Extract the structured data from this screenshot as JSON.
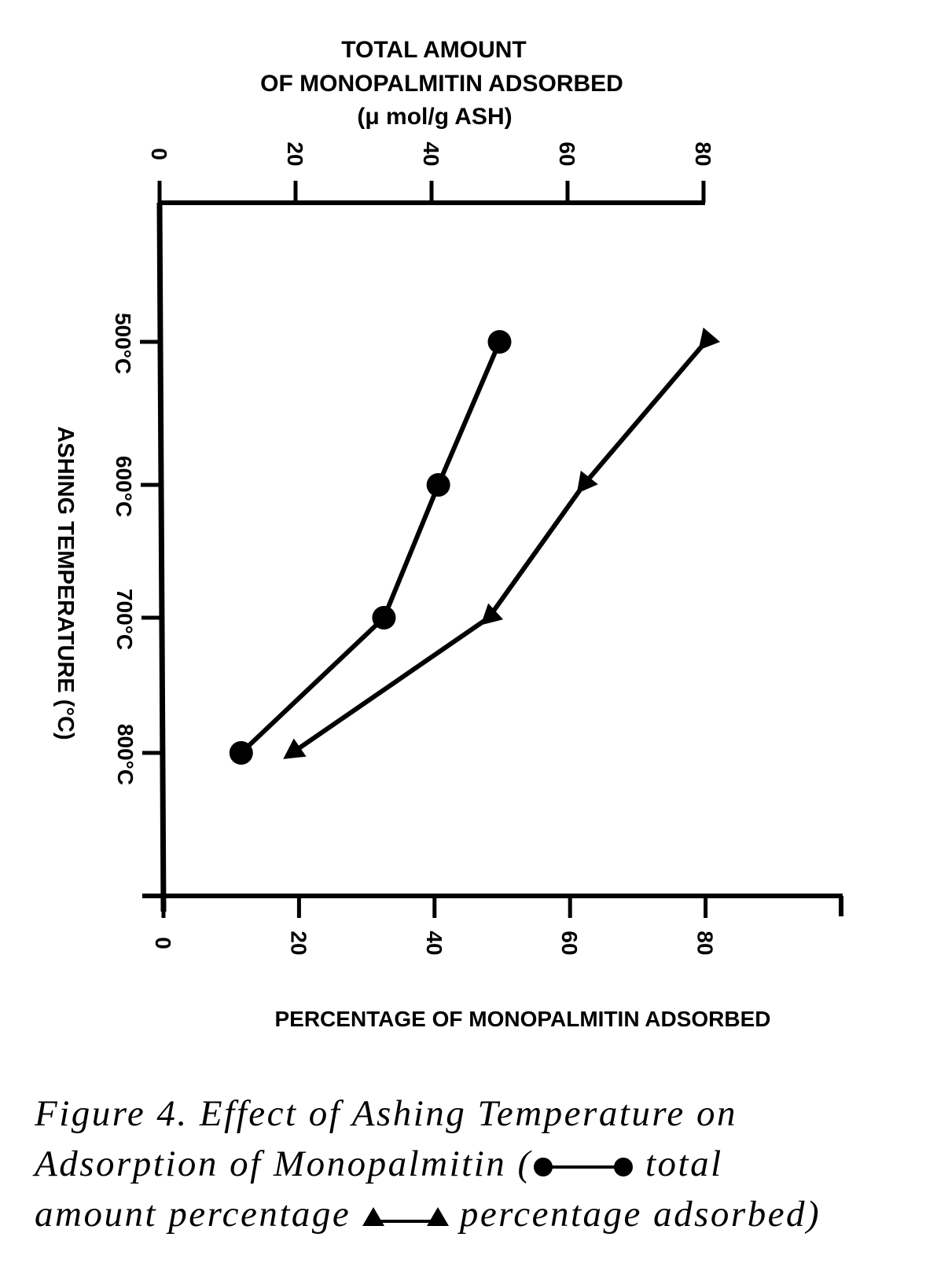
{
  "chart_data": {
    "type": "line",
    "title": "",
    "top_axis": {
      "label_lines": [
        "TOTAL AMOUNT",
        "OF MONOPALMITIN ADSORBED",
        "(μ mol/g ASH)"
      ],
      "ticks": [
        0,
        20,
        40,
        60,
        80
      ],
      "range": [
        0,
        80
      ]
    },
    "bottom_axis": {
      "label": "PERCENTAGE OF MONOPALMITIN ADSORBED",
      "ticks": [
        0,
        20,
        40,
        60,
        80
      ],
      "range": [
        0,
        100
      ]
    },
    "temperature_axis": {
      "label": "ASHING TEMPERATURE (°C)",
      "categories": [
        "500°C",
        "600°C",
        "700°C",
        "800°C"
      ],
      "values": [
        500,
        600,
        700,
        800
      ]
    },
    "series": [
      {
        "marker": "circle",
        "axis": "top",
        "temperature": [
          500,
          600,
          700,
          800
        ],
        "values": [
          50,
          41,
          33,
          12
        ]
      },
      {
        "marker": "triangle",
        "axis": "bottom",
        "temperature": [
          500,
          600,
          700,
          800
        ],
        "values": [
          80,
          62,
          48,
          19
        ]
      }
    ],
    "grid": false
  },
  "caption": {
    "line1": "Figure 4. Effect of Ashing Temperature on",
    "line2_a": "Adsorption of Monopalmitin (",
    "line2_b": " total",
    "line3_a": "amount percentage ",
    "line3_b": " percentage adsorbed)"
  },
  "colors": {
    "ink": "#000000",
    "paper": "#ffffff"
  }
}
